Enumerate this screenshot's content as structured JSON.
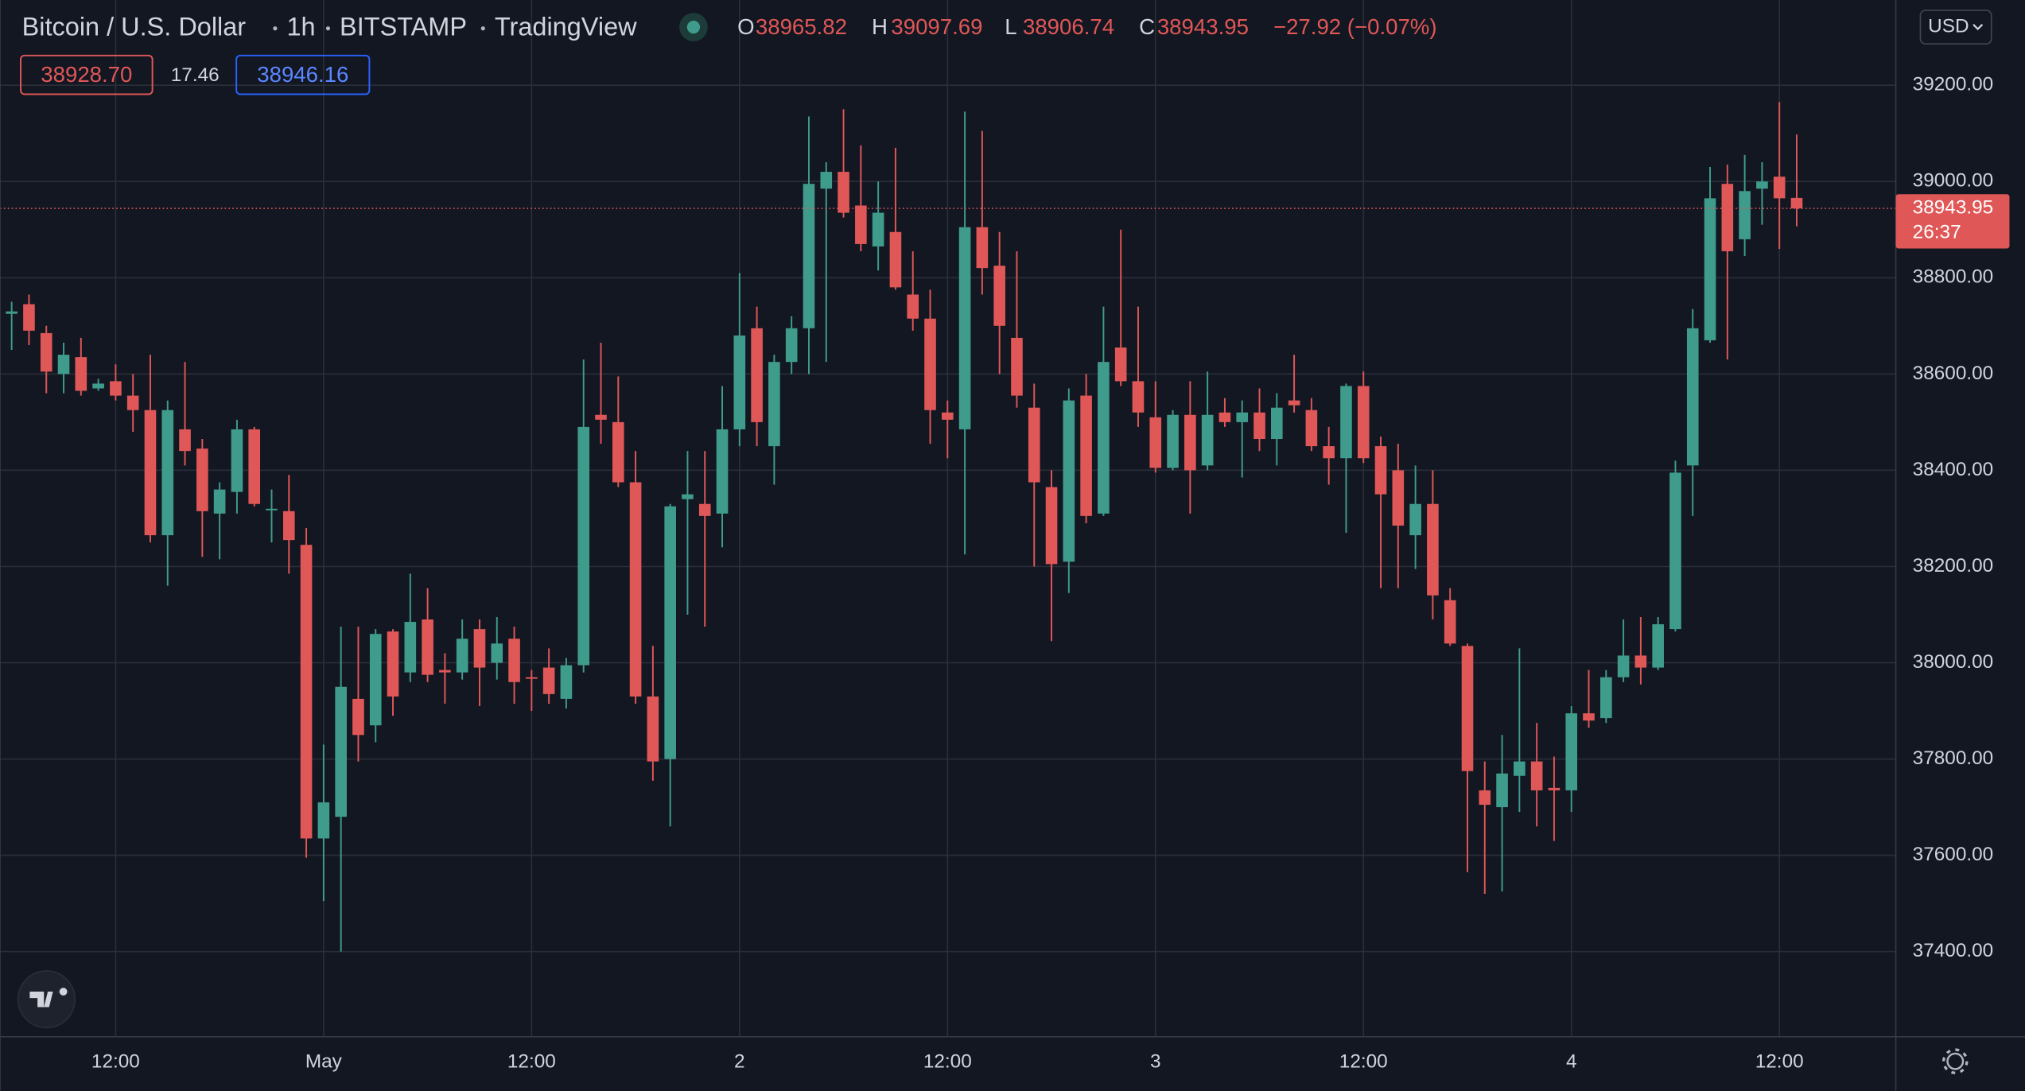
{
  "chart_data": {
    "type": "candlestick",
    "title": "Bitcoin / U.S. Dollar",
    "interval": "1h",
    "exchange": "BITSTAMP",
    "source": "TradingView",
    "ohlc_labels": [
      "O",
      "H",
      "L",
      "C"
    ],
    "change": "−27.92 (−0.07%)",
    "bid": "38928.70",
    "spread": "17.46",
    "ask": "38946.16",
    "currency": "USD",
    "countdown": "26:37",
    "up_color": "#3f9c8c",
    "down_color": "#e05757",
    "grid": true,
    "categories": [
      null,
      null,
      null,
      null,
      null,
      null,
      "12:00",
      null,
      null,
      null,
      null,
      null,
      null,
      null,
      null,
      null,
      null,
      null,
      "May",
      null,
      null,
      null,
      null,
      null,
      null,
      null,
      null,
      null,
      null,
      null,
      "12:00",
      null,
      null,
      null,
      null,
      null,
      null,
      null,
      null,
      null,
      null,
      null,
      "2",
      null,
      null,
      null,
      null,
      null,
      null,
      null,
      null,
      null,
      null,
      null,
      "12:00",
      null,
      null,
      null,
      null,
      null,
      null,
      null,
      null,
      null,
      null,
      null,
      "3",
      null,
      null,
      null,
      null,
      null,
      null,
      null,
      null,
      null,
      null,
      null,
      "12:00",
      null,
      null,
      null,
      null,
      null,
      null,
      null,
      null,
      null,
      null,
      null,
      "4",
      null,
      null,
      null,
      null,
      null,
      null,
      null,
      null,
      null,
      null,
      null,
      "12:00",
      null
    ],
    "open": [
      38725,
      38745,
      38685,
      38600,
      38635,
      38570,
      38585,
      38555,
      38525,
      38265,
      38485,
      38445,
      38310,
      38355,
      38485,
      38320,
      38315,
      38245,
      37635,
      37680,
      37925,
      37870,
      38065,
      37980,
      38090,
      37985,
      37980,
      38070,
      38000,
      38050,
      37970,
      37990,
      37925,
      37995,
      38515,
      38500,
      38375,
      37930,
      37800,
      38340,
      38330,
      38310,
      38485,
      38695,
      38450,
      38625,
      38695,
      38985,
      39020,
      38950,
      38865,
      38895,
      38765,
      38715,
      38520,
      38485,
      38905,
      38825,
      38675,
      38530,
      38365,
      38210,
      38555,
      38310,
      38655,
      38585,
      38510,
      38405,
      38515,
      38410,
      38520,
      38500,
      38520,
      38465,
      38545,
      38525,
      38450,
      38425,
      38575,
      38450,
      38400,
      38265,
      38330,
      38130,
      38035,
      37735,
      37700,
      37765,
      37795,
      37740,
      37735,
      37895,
      37885,
      37970,
      38015,
      37990,
      38070,
      38410,
      38670,
      38995,
      38880,
      38985,
      39010,
      38965.82
    ],
    "high": [
      38750,
      38765,
      38700,
      38665,
      38675,
      38590,
      38620,
      38600,
      38640,
      38545,
      38625,
      38465,
      38375,
      38505,
      38490,
      38360,
      38390,
      38280,
      37830,
      38075,
      38075,
      38070,
      38070,
      38185,
      38155,
      38020,
      38090,
      38090,
      38095,
      38075,
      37985,
      38030,
      38010,
      38630,
      38665,
      38595,
      38440,
      38035,
      38330,
      38440,
      38440,
      38575,
      38810,
      38740,
      38640,
      38720,
      39135,
      39040,
      39150,
      39075,
      39000,
      39070,
      38855,
      38775,
      38545,
      39145,
      39105,
      38895,
      38855,
      38580,
      38400,
      38570,
      38600,
      38740,
      38900,
      38740,
      38585,
      38525,
      38585,
      38605,
      38550,
      38545,
      38570,
      38560,
      38640,
      38550,
      38490,
      38580,
      38605,
      38470,
      38455,
      38410,
      38400,
      38155,
      38040,
      37795,
      37850,
      38030,
      37875,
      37805,
      37910,
      37985,
      37985,
      38090,
      38095,
      38095,
      38420,
      38735,
      39030,
      39035,
      39055,
      39040,
      39165,
      39097.69
    ],
    "low": [
      38650,
      38660,
      38560,
      38560,
      38555,
      38565,
      38545,
      38480,
      38250,
      38160,
      38410,
      38220,
      38215,
      38310,
      38325,
      38250,
      38185,
      37595,
      37505,
      37400,
      37795,
      37835,
      37890,
      37960,
      37960,
      37915,
      37965,
      37910,
      37965,
      37915,
      37900,
      37915,
      37905,
      37980,
      38455,
      38365,
      37915,
      37755,
      37660,
      38100,
      38075,
      38240,
      38450,
      38450,
      38370,
      38600,
      38600,
      38625,
      38925,
      38855,
      38815,
      38775,
      38690,
      38455,
      38425,
      38225,
      38765,
      38600,
      38530,
      38200,
      38045,
      38145,
      38290,
      38305,
      38575,
      38490,
      38395,
      38400,
      38310,
      38400,
      38490,
      38385,
      38440,
      38410,
      38520,
      38440,
      38370,
      38270,
      38415,
      38155,
      38155,
      38195,
      38090,
      38035,
      37565,
      37520,
      37525,
      37690,
      37660,
      37630,
      37690,
      37865,
      37875,
      37960,
      37955,
      37985,
      38065,
      38305,
      38665,
      38630,
      38845,
      38910,
      38860,
      38906.74
    ],
    "close": [
      38730,
      38690,
      38605,
      38640,
      38565,
      38580,
      38555,
      38525,
      38265,
      38525,
      38440,
      38315,
      38360,
      38485,
      38330,
      38320,
      38255,
      37635,
      37710,
      37950,
      37850,
      38060,
      37930,
      38085,
      37975,
      37980,
      38050,
      37990,
      38040,
      37960,
      37968,
      37935,
      37995,
      38490,
      38505,
      38375,
      37930,
      37795,
      38325,
      38350,
      38305,
      38485,
      38680,
      38500,
      38625,
      38695,
      38995,
      39020,
      38935,
      38870,
      38935,
      38780,
      38715,
      38525,
      38505,
      38905,
      38820,
      38700,
      38555,
      38375,
      38205,
      38545,
      38305,
      38625,
      38585,
      38520,
      38405,
      38515,
      38400,
      38515,
      38500,
      38520,
      38465,
      38530,
      38535,
      38450,
      38425,
      38575,
      38425,
      38350,
      38285,
      38330,
      38140,
      38040,
      37775,
      37705,
      37770,
      37795,
      37735,
      37735,
      37895,
      37880,
      37970,
      38015,
      37990,
      38080,
      38395,
      38695,
      38965,
      38855,
      38980,
      39000,
      38965,
      38943.95
    ],
    "ylim": [
      37223,
      39377
    ],
    "yticks": [
      {
        "value": 37400,
        "label": "37400.00"
      },
      {
        "value": 37600,
        "label": "37600.00"
      },
      {
        "value": 37800,
        "label": "37800.00"
      },
      {
        "value": 38000,
        "label": "38000.00"
      },
      {
        "value": 38200,
        "label": "38200.00"
      },
      {
        "value": 38400,
        "label": "38400.00"
      },
      {
        "value": 38600,
        "label": "38600.00"
      },
      {
        "value": 38800,
        "label": "38800.00"
      },
      {
        "value": 39000,
        "label": "39000.00"
      },
      {
        "value": 39200,
        "label": "39200.00"
      }
    ]
  }
}
